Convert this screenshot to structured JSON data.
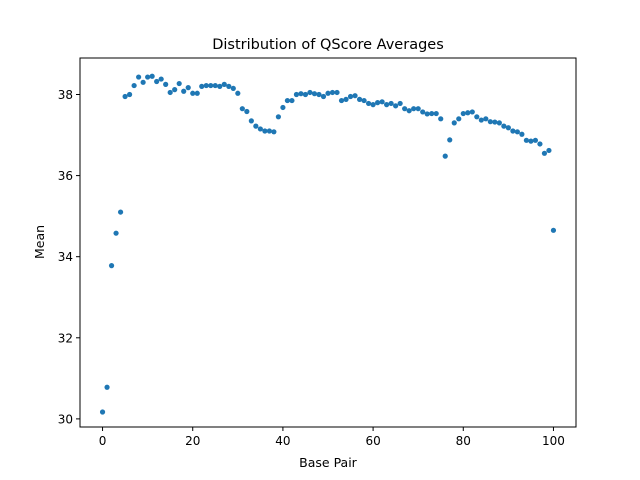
{
  "chart_data": {
    "type": "scatter",
    "title": "Distribution of QScore Averages",
    "xlabel": "Base Pair",
    "ylabel": "Mean",
    "xlim": [
      -5,
      105
    ],
    "ylim": [
      29.8,
      38.9
    ],
    "xticks": [
      0,
      20,
      40,
      60,
      80,
      100
    ],
    "yticks": [
      30,
      32,
      34,
      36,
      38
    ],
    "grid": false,
    "legend": false,
    "marker_color": "#1f77b4",
    "series": [
      {
        "x": [
          0,
          1,
          2,
          3,
          4,
          5,
          6,
          7,
          8,
          9,
          10,
          11,
          12,
          13,
          14,
          15,
          16,
          17,
          18,
          19,
          20,
          21,
          22,
          23,
          24,
          25,
          26,
          27,
          28,
          29,
          30,
          31,
          32,
          33,
          34,
          35,
          36,
          37,
          38,
          39,
          40,
          41,
          42,
          43,
          44,
          45,
          46,
          47,
          48,
          49,
          50,
          51,
          52,
          53,
          54,
          55,
          56,
          57,
          58,
          59,
          60,
          61,
          62,
          63,
          64,
          65,
          66,
          67,
          68,
          69,
          70,
          71,
          72,
          73,
          74,
          75,
          76,
          77,
          78,
          79,
          80,
          81,
          82,
          83,
          84,
          85,
          86,
          87,
          88,
          89,
          90,
          91,
          92,
          93,
          94,
          95,
          96,
          97,
          98,
          99,
          100
        ],
        "y": [
          30.17,
          30.78,
          33.78,
          34.58,
          35.1,
          37.95,
          38.0,
          38.22,
          38.43,
          38.3,
          38.43,
          38.45,
          38.32,
          38.38,
          38.25,
          38.05,
          38.12,
          38.27,
          38.08,
          38.17,
          38.03,
          38.03,
          38.2,
          38.22,
          38.22,
          38.22,
          38.2,
          38.25,
          38.2,
          38.15,
          38.03,
          37.65,
          37.58,
          37.35,
          37.22,
          37.15,
          37.1,
          37.1,
          37.08,
          37.45,
          37.68,
          37.85,
          37.85,
          38.0,
          38.02,
          38.0,
          38.05,
          38.02,
          38.0,
          37.95,
          38.03,
          38.05,
          38.05,
          37.85,
          37.88,
          37.95,
          37.97,
          37.88,
          37.85,
          37.78,
          37.75,
          37.8,
          37.82,
          37.75,
          37.78,
          37.72,
          37.78,
          37.65,
          37.6,
          37.65,
          37.65,
          37.57,
          37.52,
          37.53,
          37.53,
          37.4,
          36.48,
          36.88,
          37.3,
          37.4,
          37.53,
          37.55,
          37.57,
          37.45,
          37.37,
          37.4,
          37.33,
          37.32,
          37.3,
          37.22,
          37.18,
          37.1,
          37.08,
          37.02,
          36.87,
          36.85,
          36.87,
          36.78,
          36.55,
          36.62,
          34.65
        ]
      }
    ]
  }
}
